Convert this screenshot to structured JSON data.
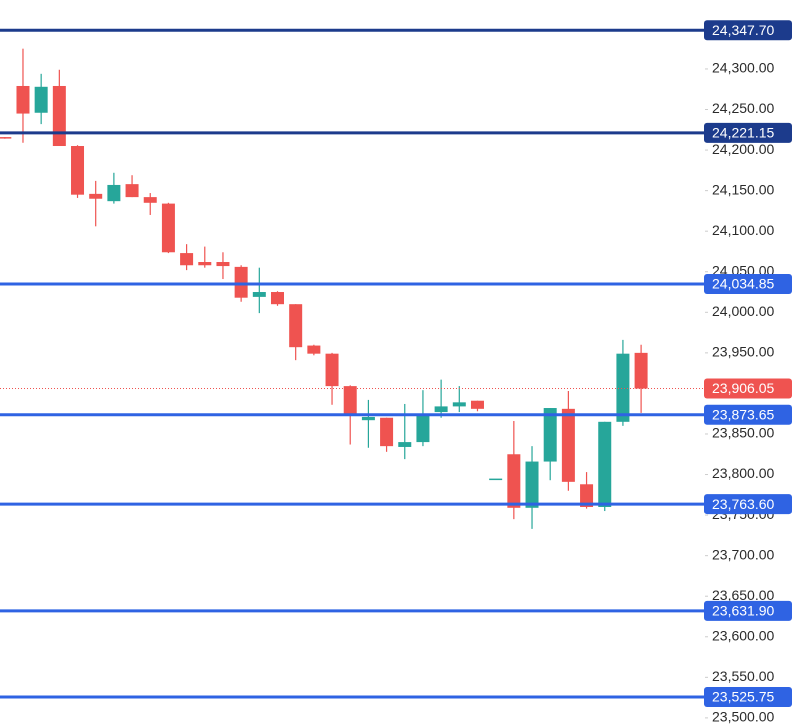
{
  "chart_data": {
    "type": "candlestick",
    "categories": [
      null,
      null,
      null,
      null,
      null,
      null,
      null,
      null,
      null,
      null,
      null,
      null,
      null,
      null,
      null,
      null,
      null,
      null,
      null,
      null,
      null,
      null,
      null,
      null,
      null,
      null,
      null,
      null,
      null,
      null,
      null,
      null,
      null,
      null,
      null,
      null
    ],
    "open": [
      24216,
      24279,
      24246,
      24279,
      24205,
      24146,
      24137,
      24158,
      24142,
      24134,
      24073,
      24062,
      24062,
      24056,
      24019,
      24025,
      24010,
      23959,
      23949,
      23909,
      23867,
      23870,
      23834,
      23840,
      23877,
      23884,
      23891,
      23795,
      23825,
      23759,
      23816,
      23881,
      23788,
      23760,
      23865,
      23950
    ],
    "high": [
      24216,
      24325,
      24294,
      24299,
      24206,
      24162,
      24172,
      24169,
      24147,
      24135,
      24084,
      24081,
      24074,
      24058,
      24055,
      24026,
      24010,
      23960,
      23950,
      23910,
      23892,
      23870,
      23887,
      23904,
      23917,
      23909,
      23891,
      23795,
      23866,
      23835,
      23882,
      23903,
      23803,
      23865,
      23966,
      23960
    ],
    "low": [
      24214,
      24209,
      24232,
      24205,
      24141,
      24106,
      24134,
      24142,
      24120,
      24073,
      24052,
      24055,
      24041,
      24013,
      23999,
      24008,
      23941,
      23947,
      23886,
      23837,
      23833,
      23828,
      23819,
      23835,
      23870,
      23877,
      23878,
      23795,
      23745,
      23733,
      23793,
      23780,
      23758,
      23755,
      23860,
      23876
    ],
    "close": [
      24215,
      24245,
      24278,
      24205,
      24145,
      24140,
      24157,
      24142,
      24135,
      24074,
      24058,
      24058,
      24057,
      24018,
      24025,
      24010,
      23957,
      23949,
      23909,
      23875,
      23871,
      23835,
      23840,
      23875,
      23884,
      23889,
      23881,
      23795,
      23759,
      23816,
      23882,
      23791,
      23760,
      23865,
      23949,
      23906
    ],
    "up_color": "#26a69a",
    "down_color": "#ef5350",
    "ylim": [
      23490,
      24385
    ],
    "yticks": [
      {
        "value": 24300,
        "label": "24,300.00"
      },
      {
        "value": 24250,
        "label": "24,250.00"
      },
      {
        "value": 24200,
        "label": "24,200.00"
      },
      {
        "value": 24150,
        "label": "24,150.00"
      },
      {
        "value": 24100,
        "label": "24,100.00"
      },
      {
        "value": 24050,
        "label": "24,050.00"
      },
      {
        "value": 24000,
        "label": "24,000.00"
      },
      {
        "value": 23950,
        "label": "23,950.00"
      },
      {
        "value": 23850,
        "label": "23,850.00"
      },
      {
        "value": 23800,
        "label": "23,800.00"
      },
      {
        "value": 23750,
        "label": "23,750.00"
      },
      {
        "value": 23700,
        "label": "23,700.00"
      },
      {
        "value": 23650,
        "label": "23,650.00"
      },
      {
        "value": 23600,
        "label": "23,600.00"
      },
      {
        "value": 23550,
        "label": "23,550.00"
      },
      {
        "value": 23500,
        "label": "23,500.00"
      }
    ],
    "levels": [
      {
        "value": 24347.7,
        "label": "24,347.70",
        "color": "#1c3b8c"
      },
      {
        "value": 24221.15,
        "label": "24,221.15",
        "color": "#1c3b8c"
      },
      {
        "value": 24034.85,
        "label": "24,034.85",
        "color": "#2f63e3"
      },
      {
        "value": 23873.65,
        "label": "23,873.65",
        "color": "#2f63e3"
      },
      {
        "value": 23763.6,
        "label": "23,763.60",
        "color": "#2f63e3"
      },
      {
        "value": 23631.9,
        "label": "23,631.90",
        "color": "#2f63e3"
      },
      {
        "value": 23525.75,
        "label": "23,525.75",
        "color": "#2f63e3"
      }
    ],
    "last_price": {
      "value": 23906.05,
      "label": "23,906.05",
      "color": "#ef5350"
    }
  }
}
